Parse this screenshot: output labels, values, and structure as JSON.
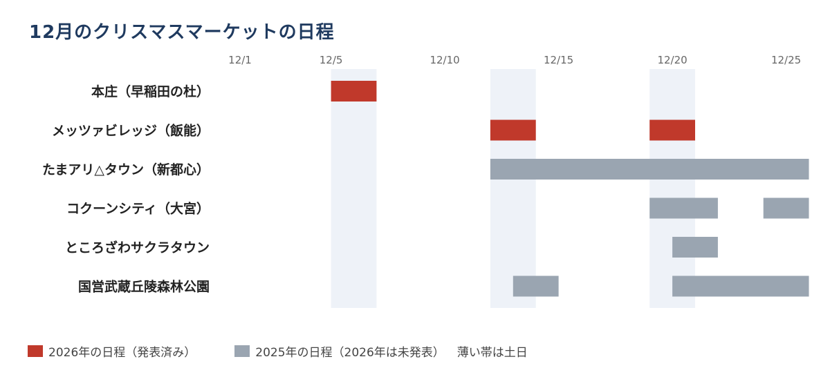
{
  "title": "12月のクリスマスマーケットの日程",
  "colors": {
    "y2026": "#c0392b",
    "y2025": "#9aa5b1",
    "weekend": "#eef2f8",
    "title": "#1f3a5f"
  },
  "legend": {
    "item_2026": "2026年の日程（発表済み）",
    "item_2025": "2025年の日程（2026年は未発表）",
    "note": "薄い帯は土日"
  },
  "chart_data": {
    "type": "gantt",
    "title": "12月のクリスマスマーケットの日程",
    "x_ticks": [
      {
        "day": 1,
        "label": "12/1"
      },
      {
        "day": 5,
        "label": "12/5"
      },
      {
        "day": 10,
        "label": "12/10"
      },
      {
        "day": 15,
        "label": "12/15"
      },
      {
        "day": 20,
        "label": "12/20"
      },
      {
        "day": 25,
        "label": "12/25"
      }
    ],
    "x_range": [
      1,
      25
    ],
    "weekend_bands": [
      [
        5,
        6
      ],
      [
        12,
        13
      ],
      [
        19,
        20
      ]
    ],
    "rows": [
      {
        "label": "本庄（早稲田の杜）",
        "bars": [
          {
            "year": "2026",
            "start": 5,
            "end": 6
          }
        ]
      },
      {
        "label": "メッツァビレッジ（飯能）",
        "bars": [
          {
            "year": "2026",
            "start": 12,
            "end": 13
          },
          {
            "year": "2026",
            "start": 19,
            "end": 20
          }
        ]
      },
      {
        "label": "たまアリ△タウン（新都心）",
        "bars": [
          {
            "year": "2025",
            "start": 12,
            "end": 25
          }
        ]
      },
      {
        "label": "コクーンシティ（大宮）",
        "bars": [
          {
            "year": "2025",
            "start": 19,
            "end": 21
          },
          {
            "year": "2025",
            "start": 24,
            "end": 25
          }
        ]
      },
      {
        "label": "ところざわサクラタウン",
        "bars": [
          {
            "year": "2025",
            "start": 20,
            "end": 21
          }
        ]
      },
      {
        "label": "国営武蔵丘陵森林公園",
        "bars": [
          {
            "year": "2025",
            "start": 13,
            "end": 14
          },
          {
            "year": "2025",
            "start": 20,
            "end": 25
          }
        ]
      }
    ]
  }
}
